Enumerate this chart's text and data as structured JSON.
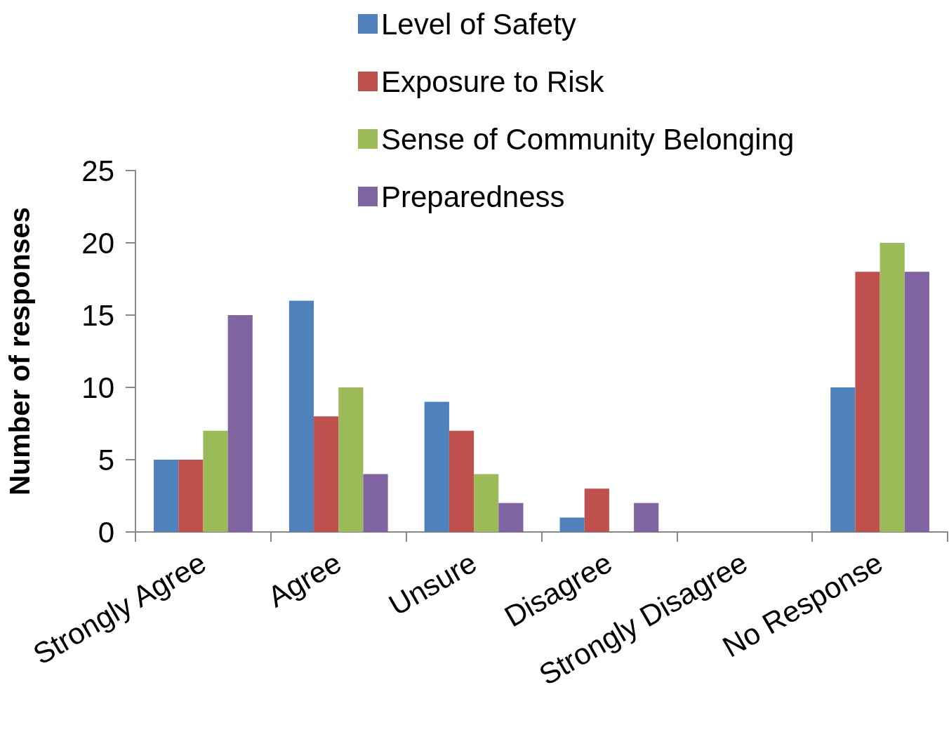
{
  "chart_data": {
    "type": "bar",
    "ylabel": "Number of responses",
    "categories": [
      "Strongly Agree",
      "Agree",
      "Unsure",
      "Disagree",
      "Strongly Disagree",
      "No Response"
    ],
    "series": [
      {
        "name": "Level of Safety",
        "color": "#4f81bd",
        "values": [
          5,
          16,
          9,
          1,
          0,
          10
        ]
      },
      {
        "name": "Exposure to Risk",
        "color": "#c0504d",
        "values": [
          5,
          8,
          7,
          3,
          0,
          18
        ]
      },
      {
        "name": "Sense of Community Belonging",
        "color": "#9bbb59",
        "values": [
          7,
          10,
          4,
          0,
          0,
          20
        ]
      },
      {
        "name": "Preparedness",
        "color": "#8064a2",
        "values": [
          15,
          4,
          2,
          2,
          0,
          18
        ]
      }
    ],
    "ylim": [
      0,
      25
    ],
    "yticks": [
      0,
      5,
      10,
      15,
      20,
      25
    ],
    "grid": false,
    "legend": "top"
  }
}
